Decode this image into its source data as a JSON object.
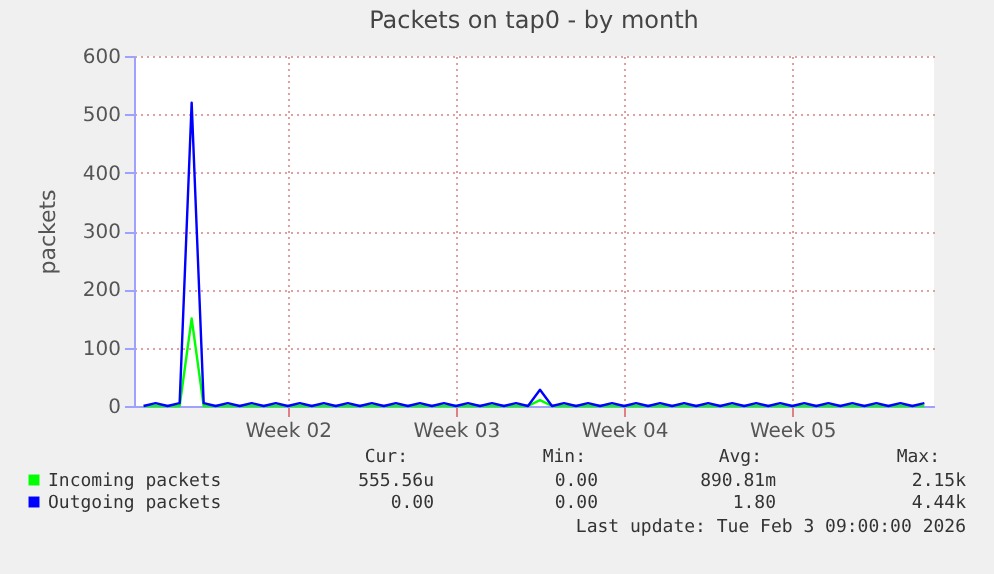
{
  "chart_data": {
    "type": "line",
    "title": "Packets on tap0 - by month",
    "ylabel": "packets",
    "categories": [
      null,
      null,
      null,
      null,
      null,
      null,
      null,
      null,
      null,
      null,
      null,
      null,
      "Week 02",
      null,
      null,
      null,
      null,
      null,
      null,
      null,
      null,
      null,
      null,
      null,
      null,
      null,
      "Week 03",
      null,
      null,
      null,
      null,
      null,
      null,
      null,
      null,
      null,
      null,
      null,
      null,
      null,
      "Week 04",
      null,
      null,
      null,
      null,
      null,
      null,
      null,
      null,
      null,
      null,
      null,
      null,
      null,
      "Week 05",
      null,
      null,
      null,
      null,
      null,
      null,
      null,
      null,
      null,
      null,
      null
    ],
    "series": [
      {
        "name": "Incoming packets",
        "color": "#00ff00",
        "values": [
          0,
          0,
          0,
          0,
          150,
          0,
          0,
          0,
          0,
          0,
          0,
          0,
          0,
          0,
          0,
          0,
          0,
          0,
          0,
          0,
          0,
          0,
          0,
          0,
          0,
          0,
          0,
          0,
          0,
          0,
          0,
          0,
          0,
          10,
          0,
          0,
          0,
          0,
          0,
          0,
          0,
          0,
          0,
          0,
          0,
          0,
          0,
          0,
          0,
          0,
          0,
          0,
          0,
          0,
          0,
          0,
          0,
          0,
          0,
          0,
          0,
          0,
          0,
          0,
          0,
          0
        ]
      },
      {
        "name": "Outgoing packets",
        "color": "#0000ff",
        "values": [
          0,
          5,
          0,
          5,
          520,
          5,
          0,
          5,
          0,
          5,
          0,
          5,
          0,
          5,
          0,
          5,
          0,
          5,
          0,
          5,
          0,
          5,
          0,
          5,
          0,
          5,
          0,
          5,
          0,
          5,
          0,
          5,
          0,
          28,
          0,
          5,
          0,
          5,
          0,
          5,
          0,
          5,
          0,
          5,
          0,
          5,
          0,
          5,
          0,
          5,
          0,
          5,
          0,
          5,
          0,
          5,
          0,
          5,
          0,
          5,
          0,
          5,
          0,
          5,
          0,
          5
        ]
      }
    ],
    "ylim": [
      0,
      600
    ],
    "yticks": [
      0,
      100,
      200,
      300,
      400,
      500,
      600
    ],
    "grid": true,
    "legend": "bottom",
    "annotations": [
      "Cur:",
      "Min:",
      "Avg:",
      "Max:",
      "555.56u",
      "0.00",
      "890.81m",
      "2.15k",
      "0.00",
      "0.00",
      "1.80",
      "4.44k",
      "Last update: Tue Feb  3 09:00:00 2026"
    ]
  }
}
